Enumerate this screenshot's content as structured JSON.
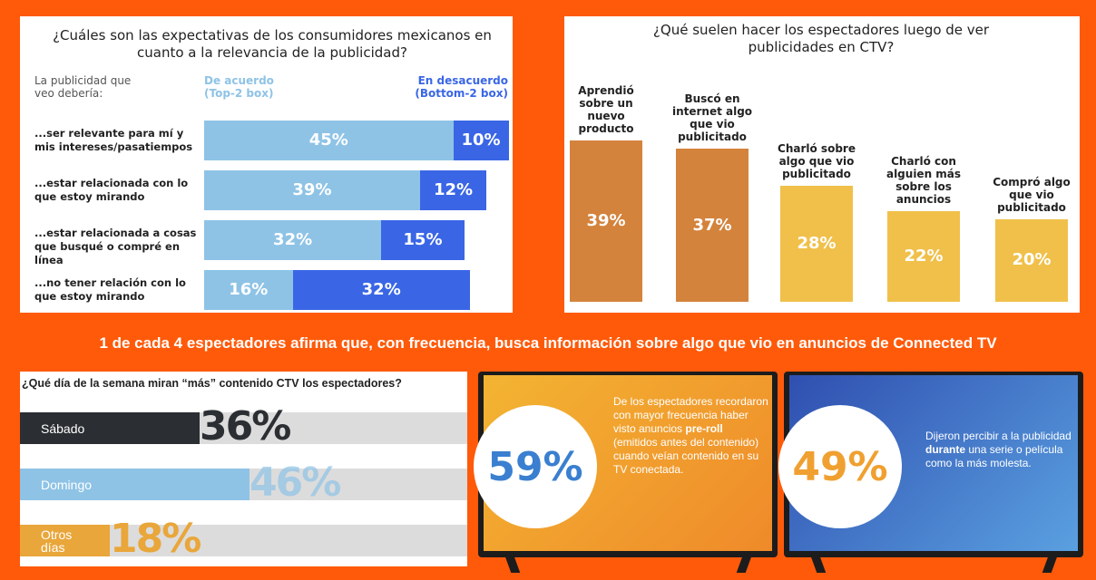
{
  "chart_data": [
    {
      "type": "stacked-bar-horizontal",
      "title": "¿Cuáles son las expectativas de los consumidores mexicanos en cuanto a la relevancia de la publicidad?",
      "category_header": "La publicidad que veo debería:",
      "categories": [
        "...ser relevante para mí y mis intereses/pasatiempos",
        "...estar relacionada con lo que estoy mirando",
        "...estar relacionada a cosas que busqué o compré en línea",
        "...no tener relación con lo que estoy mirando"
      ],
      "series": [
        {
          "name": "De acuerdo (Top-2 box)",
          "color": "#8ec3e6",
          "values": [
            45,
            39,
            32,
            16
          ],
          "value_labels": [
            "45%",
            "39%",
            "32%",
            "16%"
          ]
        },
        {
          "name": "En desacuerdo (Bottom-2 box)",
          "color": "#3a66e6",
          "values": [
            10,
            12,
            15,
            32
          ],
          "value_labels": [
            "10%",
            "12%",
            "15%",
            "32%"
          ]
        }
      ]
    },
    {
      "type": "bar",
      "title": "¿Qué suelen hacer los espectadores luego de ver publicidades en CTV?",
      "categories": [
        "Aprendió sobre un nuevo producto",
        "Buscó en internet algo que vio publicitado",
        "Charló sobre algo que vio publicitado",
        "Charló con alguien más sobre los anuncios",
        "Compró algo que vio publicitado"
      ],
      "values": [
        39,
        37,
        28,
        22,
        20
      ],
      "value_labels": [
        "39%",
        "37%",
        "28%",
        "22%",
        "20%"
      ],
      "colors": [
        "#d4833c",
        "#d4833c",
        "#f0c04a",
        "#f0c04a",
        "#f0c04a"
      ]
    },
    {
      "type": "bar-horizontal",
      "title": "¿Qué día de la semana miran “más” contenido CTV los espectadores?",
      "categories": [
        "Sábado",
        "Domingo",
        "Otros días"
      ],
      "values": [
        36,
        46,
        18
      ],
      "value_labels": [
        "36%",
        "46%",
        "18%"
      ],
      "colors": [
        "#2b2f33",
        "#8ec3e6",
        "#e9a63a"
      ]
    }
  ],
  "banner": "1 de cada 4 espectadores afirma que, con frecuencia, busca información sobre algo que vio en anuncios de Connected TV",
  "panels": [
    {
      "stat": "59%",
      "text": [
        "De los espectadores recordaron con mayor frecuencia haber visto anuncios ",
        "pre-roll",
        " (emitidos antes del contenido) cuando veían contenido en su TV conectada."
      ]
    },
    {
      "stat": "49%",
      "text": [
        "Dijeron percibir a la publicidad ",
        "durante",
        " una serie o película como la más molesta."
      ]
    }
  ]
}
